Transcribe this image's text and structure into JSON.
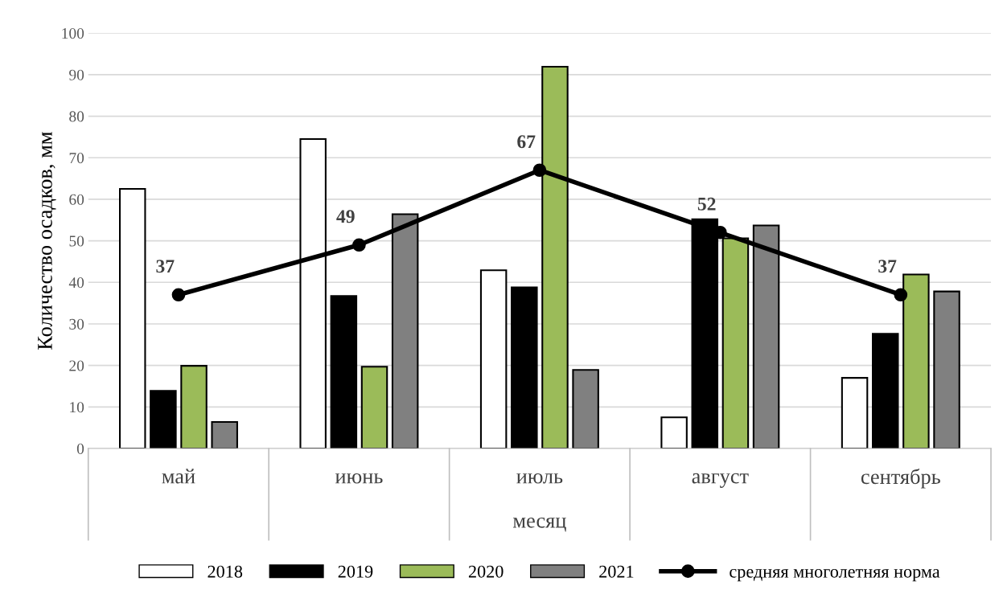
{
  "chart_data": {
    "type": "bar",
    "xlabel": "месяц",
    "ylabel": "Количество осадков, мм",
    "categories": [
      "май",
      "июнь",
      "июль",
      "август",
      "сентябрь"
    ],
    "series": [
      {
        "name": "2018",
        "color": "#ffffff",
        "values": [
          62.5,
          74.5,
          42.9,
          7.5,
          17
        ]
      },
      {
        "name": "2019",
        "color": "#000000",
        "values": [
          13.9,
          36.7,
          38.8,
          55.2,
          27.6
        ]
      },
      {
        "name": "2020",
        "color": "#9bbb59",
        "values": [
          19.9,
          19.7,
          91.9,
          50.6,
          41.9
        ]
      },
      {
        "name": "2021",
        "color": "#808080",
        "values": [
          6.4,
          56.4,
          18.9,
          53.7,
          37.8
        ]
      },
      {
        "name": "средняя многолетняя норма",
        "type": "line",
        "color": "#000000",
        "marker": "circle",
        "values": [
          37,
          49,
          67,
          52,
          37
        ],
        "value_labels": [
          "37",
          "49",
          "67",
          "52",
          "37"
        ]
      }
    ],
    "ylim": [
      0,
      100
    ],
    "yticks": [
      0,
      10,
      20,
      30,
      40,
      50,
      60,
      70,
      80,
      90,
      100
    ],
    "grid": "y",
    "legend": "bottom"
  }
}
